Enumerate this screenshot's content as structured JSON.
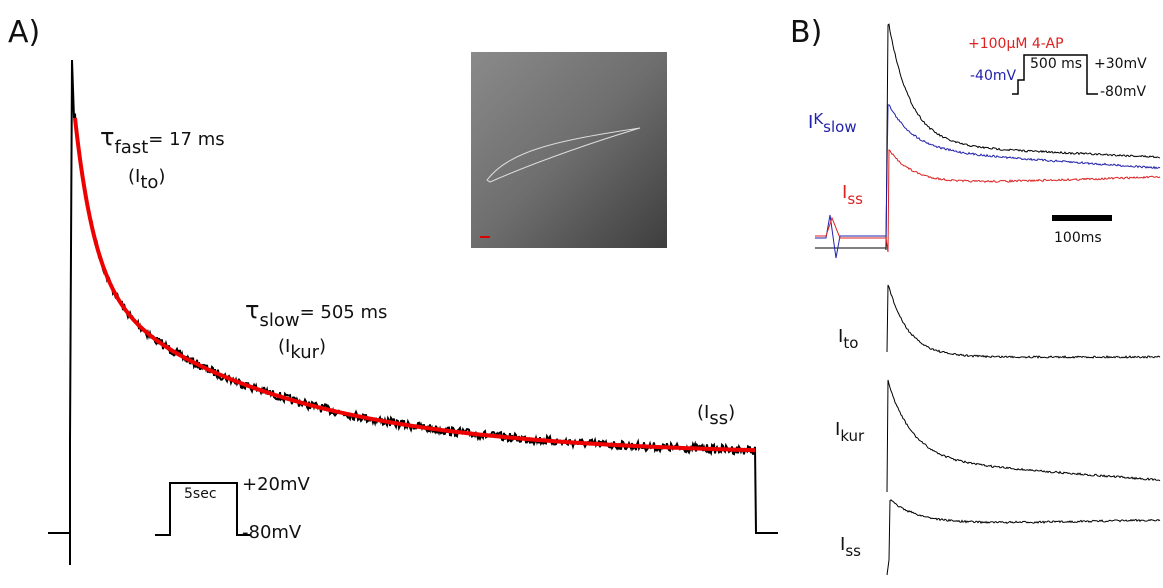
{
  "panel_a": {
    "label": "A)",
    "tau_fast": {
      "symbol": "τ",
      "sub": "fast",
      "text": "= 17 ms"
    },
    "ito": {
      "open": "(I",
      "sub": "to",
      "close": ")"
    },
    "tau_slow": {
      "symbol": "τ",
      "sub": "slow",
      "text": "= 505 ms"
    },
    "ikur": {
      "open": "(I",
      "sub": "kur",
      "close": ")"
    },
    "iss": {
      "open": "(I",
      "sub": "ss",
      "close": ")"
    },
    "protocol": {
      "duration": "5sec",
      "high": "+20mV",
      "low": "-80mV"
    }
  },
  "panel_b": {
    "label": "B)",
    "protocol": {
      "drug": "+100μM 4-AP",
      "hold": "-40mV",
      "duration": "500 ms",
      "high": "+30mV",
      "low": "-80mV"
    },
    "ikslow": {
      "main": "I",
      "sub": "K",
      "subsub": "slow"
    },
    "iss_red": {
      "main": "I",
      "sub": "ss"
    },
    "scale": "100ms",
    "ito": {
      "main": "I",
      "sub": "to"
    },
    "ikur": {
      "main": "I",
      "sub": "kur"
    },
    "iss": {
      "main": "I",
      "sub": "ss"
    }
  }
}
